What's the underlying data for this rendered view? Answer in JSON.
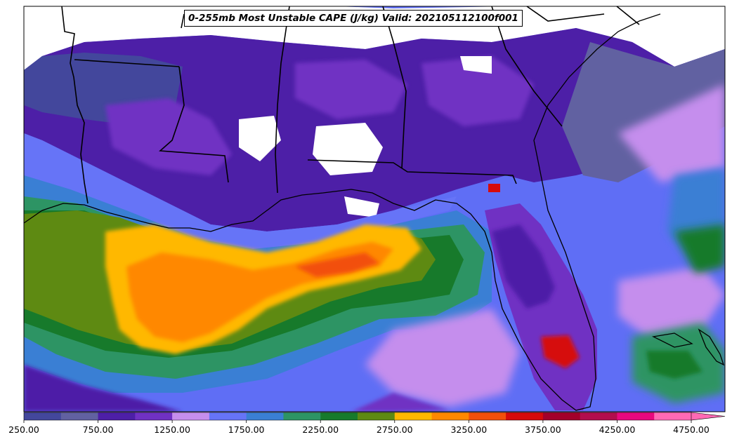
{
  "title": "0-255mb Most Unstable CAPE (J/kg) Valid: 202105112100f001",
  "colorbar": {
    "tick_labels": [
      "250.00",
      "750.00",
      "1250.00",
      "1750.00",
      "2250.00",
      "2750.00",
      "3250.00",
      "3750.00",
      "4250.00",
      "4750.00"
    ],
    "colors": [
      "#43479c",
      "#6161a1",
      "#4d1fa7",
      "#7031c3",
      "#c58eed",
      "#6674f7",
      "#3a7fd4",
      "#2d9464",
      "#177a2b",
      "#5e8a12",
      "#ffb800",
      "#ff8800",
      "#f24f0a",
      "#d60a0a",
      "#a3002a",
      "#b20d4d",
      "#e8087e",
      "#ff69b4"
    ],
    "extend": "max"
  },
  "map": {
    "region": "Gulf of Mexico / Southeastern United States",
    "features": [
      "state-borders",
      "coastlines",
      "cape-shading"
    ]
  }
}
